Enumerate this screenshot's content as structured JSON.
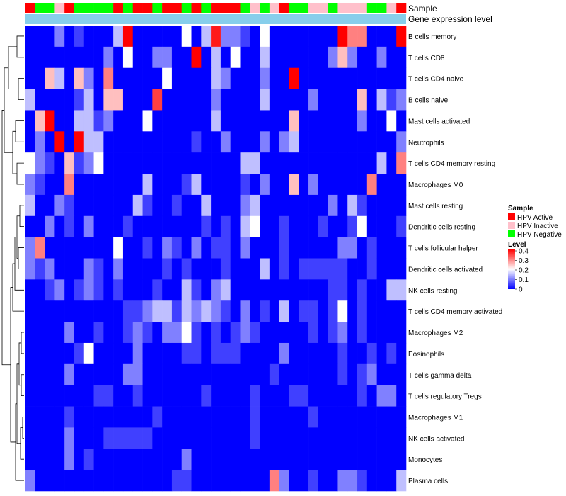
{
  "chart_data": {
    "type": "heatmap",
    "annotation_labels": {
      "sample": "Sample",
      "gene": "Gene expression level"
    },
    "legend": {
      "sample_title": "Sample",
      "sample_entries": [
        {
          "label": "HPV Active",
          "color": "#ff0000"
        },
        {
          "label": "HPV Inactive",
          "color": "#ffc0cb"
        },
        {
          "label": "HPV Negative",
          "color": "#00ff00"
        }
      ],
      "level_title": "Level",
      "level_ticks": [
        "0.4",
        "0.3",
        "0.2",
        "0.1",
        "0"
      ],
      "level_range": [
        0,
        0.4
      ],
      "placement": "right"
    },
    "colors": {
      "low": "#0000ff",
      "mid": "#ffffff",
      "high": "#ff0000",
      "gene_bar": "#87ceeb"
    },
    "column_groups": [
      0,
      2,
      2,
      1,
      0,
      2,
      2,
      2,
      2,
      0,
      2,
      0,
      0,
      2,
      0,
      0,
      2,
      0,
      2,
      0,
      0,
      0,
      2,
      1,
      2,
      1,
      0,
      2,
      2,
      1,
      1,
      2,
      1,
      1,
      1,
      2,
      2,
      1,
      0
    ],
    "rows": [
      "B cells memory",
      "T cells CD8",
      "T cells CD4 naive",
      "B cells naive",
      "Mast cells activated",
      "Neutrophils",
      "T cells CD4 memory resting",
      "Macrophages M0",
      "Mast cells resting",
      "Dendritic cells resting",
      "T cells follicular helper",
      "Dendritic cells activated",
      "NK cells resting",
      "T cells CD4 memory activated",
      "Macrophages M2",
      "Eosinophils",
      "T cells gamma delta",
      "T cells regulatory  Tregs",
      "Macrophages M1",
      "NK cells activated",
      "Monocytes",
      "Plasma cells"
    ],
    "values": [
      [
        0,
        0,
        0,
        0.1,
        0,
        0.05,
        0,
        0,
        0,
        0.15,
        0.4,
        0,
        0,
        0,
        0,
        0,
        0.2,
        0,
        0.15,
        0.38,
        0.1,
        0.1,
        0.05,
        0,
        0.2,
        0,
        0,
        0,
        0,
        0,
        0,
        0,
        0.4,
        0.3,
        0.3,
        0,
        0,
        0,
        0.4
      ],
      [
        0,
        0,
        0,
        0,
        0,
        0,
        0,
        0,
        0.1,
        0,
        0.2,
        0,
        0,
        0.1,
        0.1,
        0,
        0,
        0.4,
        0,
        0.15,
        0,
        0.2,
        0,
        0,
        0.15,
        0,
        0,
        0,
        0,
        0,
        0,
        0.1,
        0.25,
        0.1,
        0,
        0,
        0.1,
        0,
        0
      ],
      [
        0,
        0,
        0.25,
        0.15,
        0,
        0.25,
        0.1,
        0,
        0.3,
        0,
        0,
        0,
        0,
        0,
        0.2,
        0,
        0,
        0,
        0,
        0.15,
        0.1,
        0,
        0,
        0,
        0.1,
        0,
        0,
        0.4,
        0,
        0,
        0,
        0,
        0,
        0,
        0,
        0,
        0,
        0,
        0
      ],
      [
        0.15,
        0,
        0,
        0,
        0,
        0.05,
        0.15,
        0,
        0.25,
        0.25,
        0,
        0,
        0,
        0.35,
        0,
        0,
        0,
        0,
        0,
        0.1,
        0,
        0,
        0,
        0,
        0.15,
        0,
        0,
        0,
        0,
        0.1,
        0,
        0,
        0,
        0,
        0.25,
        0,
        0.15,
        0.05,
        0.1
      ],
      [
        0,
        0.25,
        0.4,
        0,
        0,
        0.15,
        0.15,
        0.05,
        0.1,
        0,
        0,
        0,
        0.2,
        0,
        0,
        0,
        0,
        0,
        0,
        0.15,
        0,
        0,
        0,
        0,
        0,
        0,
        0,
        0.25,
        0,
        0,
        0,
        0,
        0,
        0,
        0.1,
        0,
        0,
        0.2,
        0
      ],
      [
        0,
        0.1,
        0,
        0.4,
        0,
        0.4,
        0.15,
        0.15,
        0,
        0,
        0,
        0,
        0,
        0,
        0,
        0,
        0,
        0.05,
        0,
        0,
        0.1,
        0,
        0,
        0,
        0.1,
        0,
        0.1,
        0.15,
        0,
        0,
        0,
        0,
        0,
        0,
        0,
        0,
        0,
        0,
        0.1
      ],
      [
        0.2,
        0.1,
        0.05,
        0,
        0.25,
        0.05,
        0.1,
        0.2,
        0,
        0,
        0,
        0,
        0,
        0,
        0,
        0,
        0,
        0,
        0,
        0,
        0,
        0,
        0.15,
        0.15,
        0,
        0,
        0,
        0,
        0,
        0,
        0,
        0,
        0,
        0,
        0,
        0,
        0.15,
        0,
        0.3
      ],
      [
        0.1,
        0.05,
        0,
        0,
        0.3,
        0,
        0,
        0,
        0,
        0,
        0,
        0,
        0.15,
        0,
        0,
        0,
        0.05,
        0.15,
        0,
        0,
        0,
        0,
        0.05,
        0,
        0.1,
        0,
        0,
        0.25,
        0,
        0.1,
        0,
        0,
        0,
        0,
        0,
        0.3,
        0,
        0,
        0
      ],
      [
        0.15,
        0,
        0,
        0.1,
        0.05,
        0,
        0,
        0,
        0,
        0,
        0,
        0.15,
        0.05,
        0,
        0,
        0.05,
        0,
        0,
        0.15,
        0,
        0,
        0,
        0.1,
        0.15,
        0,
        0,
        0,
        0,
        0,
        0,
        0,
        0.1,
        0,
        0.15,
        0.05,
        0,
        0,
        0,
        0
      ],
      [
        0,
        0,
        0.1,
        0,
        0.05,
        0,
        0.1,
        0,
        0,
        0,
        0.05,
        0,
        0,
        0,
        0,
        0,
        0,
        0,
        0.05,
        0,
        0.05,
        0,
        0.15,
        0.2,
        0,
        0,
        0.05,
        0,
        0,
        0,
        0.05,
        0,
        0,
        0.05,
        0.2,
        0,
        0,
        0,
        0.05
      ],
      [
        0.1,
        0.3,
        0,
        0,
        0,
        0,
        0,
        0,
        0,
        0.2,
        0,
        0,
        0.05,
        0,
        0.1,
        0.05,
        0,
        0.1,
        0,
        0.05,
        0.05,
        0,
        0.1,
        0,
        0,
        0,
        0.05,
        0,
        0,
        0,
        0,
        0,
        0.1,
        0.1,
        0,
        0.05,
        0,
        0,
        0
      ],
      [
        0.1,
        0.05,
        0.1,
        0,
        0,
        0,
        0.1,
        0.05,
        0,
        0.1,
        0,
        0,
        0,
        0,
        0.05,
        0,
        0.05,
        0,
        0,
        0,
        0.05,
        0,
        0,
        0,
        0.15,
        0,
        0.05,
        0,
        0.05,
        0.05,
        0.05,
        0.05,
        0.05,
        0,
        0,
        0.05,
        0,
        0,
        0
      ],
      [
        0,
        0,
        0.05,
        0.1,
        0,
        0.05,
        0.1,
        0.05,
        0,
        0.05,
        0,
        0,
        0,
        0.05,
        0,
        0,
        0.15,
        0.05,
        0,
        0.1,
        0.15,
        0,
        0,
        0,
        0,
        0,
        0,
        0,
        0,
        0,
        0,
        0.05,
        0.05,
        0,
        0.05,
        0,
        0,
        0.15,
        0.15
      ],
      [
        0,
        0,
        0,
        0,
        0,
        0,
        0,
        0,
        0,
        0,
        0.05,
        0.05,
        0.1,
        0.15,
        0.15,
        0.05,
        0.15,
        0.1,
        0.15,
        0.1,
        0.05,
        0,
        0.1,
        0,
        0.05,
        0,
        0.15,
        0,
        0.05,
        0.05,
        0,
        0.05,
        0.2,
        0,
        0.05,
        0,
        0,
        0,
        0
      ],
      [
        0,
        0,
        0,
        0,
        0.1,
        0,
        0,
        0.05,
        0,
        0,
        0.05,
        0.1,
        0.05,
        0,
        0.1,
        0.1,
        0.2,
        0.05,
        0,
        0.05,
        0,
        0.05,
        0.1,
        0.05,
        0,
        0,
        0,
        0,
        0,
        0.05,
        0,
        0.05,
        0.1,
        0,
        0.05,
        0,
        0,
        0,
        0
      ],
      [
        0,
        0,
        0,
        0,
        0,
        0.05,
        0.2,
        0,
        0,
        0,
        0,
        0.1,
        0,
        0,
        0,
        0,
        0.05,
        0.05,
        0,
        0.05,
        0.05,
        0.05,
        0,
        0,
        0,
        0,
        0.1,
        0,
        0,
        0,
        0,
        0,
        0.05,
        0,
        0,
        0.05,
        0,
        0.05,
        0
      ],
      [
        0,
        0,
        0,
        0,
        0.1,
        0,
        0,
        0,
        0,
        0,
        0.1,
        0.1,
        0,
        0,
        0,
        0,
        0,
        0,
        0,
        0,
        0,
        0,
        0,
        0,
        0,
        0.05,
        0,
        0,
        0,
        0,
        0,
        0,
        0.05,
        0,
        0.05,
        0.1,
        0,
        0,
        0
      ],
      [
        0,
        0,
        0,
        0,
        0,
        0,
        0,
        0.05,
        0.05,
        0,
        0,
        0.05,
        0,
        0,
        0,
        0,
        0,
        0,
        0.05,
        0,
        0,
        0,
        0,
        0.05,
        0,
        0,
        0,
        0.05,
        0.05,
        0,
        0,
        0,
        0,
        0,
        0.05,
        0,
        0.1,
        0.1,
        0
      ],
      [
        0,
        0,
        0,
        0,
        0.05,
        0,
        0,
        0,
        0,
        0,
        0,
        0,
        0,
        0.05,
        0,
        0,
        0,
        0,
        0,
        0,
        0,
        0,
        0,
        0.05,
        0,
        0,
        0,
        0,
        0,
        0.05,
        0,
        0,
        0,
        0,
        0,
        0,
        0,
        0,
        0
      ],
      [
        0,
        0,
        0,
        0,
        0.1,
        0,
        0,
        0,
        0.05,
        0.05,
        0.05,
        0.05,
        0.05,
        0,
        0,
        0,
        0,
        0,
        0,
        0,
        0,
        0,
        0,
        0.05,
        0,
        0,
        0,
        0,
        0,
        0,
        0,
        0,
        0,
        0,
        0,
        0,
        0,
        0,
        0
      ],
      [
        0,
        0,
        0,
        0,
        0.1,
        0,
        0.05,
        0,
        0,
        0,
        0,
        0,
        0,
        0,
        0,
        0,
        0.1,
        0,
        0,
        0,
        0,
        0,
        0,
        0,
        0,
        0,
        0,
        0,
        0,
        0,
        0,
        0,
        0,
        0,
        0,
        0,
        0,
        0,
        0
      ],
      [
        0.1,
        0,
        0,
        0,
        0,
        0,
        0,
        0,
        0,
        0,
        0,
        0,
        0,
        0,
        0,
        0.05,
        0.05,
        0,
        0,
        0,
        0,
        0,
        0,
        0,
        0,
        0.3,
        0.1,
        0,
        0,
        0.05,
        0,
        0,
        0.1,
        0.1,
        0.05,
        0,
        0,
        0,
        0.15
      ]
    ]
  }
}
